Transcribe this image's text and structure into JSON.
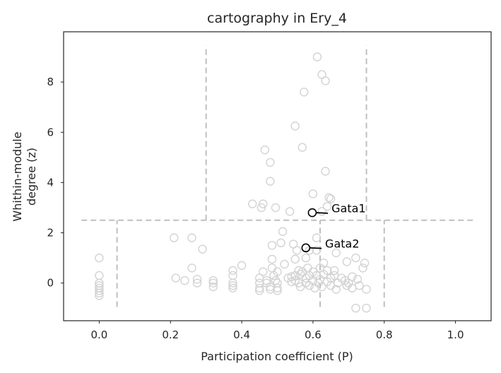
{
  "chart_data": {
    "type": "scatter",
    "title": "cartography in Ery_4",
    "xlabel": "Participation coefficient (P)",
    "ylabel_lines": [
      "Whithin-module",
      "degree (z)"
    ],
    "xlim": [
      -0.1,
      1.1
    ],
    "ylim": [
      -1.5,
      10.0
    ],
    "xticks": [
      0.0,
      0.2,
      0.4,
      0.6,
      0.8,
      1.0
    ],
    "xtick_labels": [
      "0.0",
      "0.2",
      "0.4",
      "0.6",
      "0.8",
      "1.0"
    ],
    "yticks": [
      0,
      2,
      4,
      6,
      8
    ],
    "ytick_labels": [
      "0",
      "2",
      "4",
      "6",
      "8"
    ],
    "grid": false,
    "colors": {
      "points": "#d3d3d3",
      "highlight": "#000000",
      "guides": "#bfbfbf",
      "axes": "#262626"
    },
    "guide_lines": {
      "horizontal": [
        {
          "y": 2.5,
          "x_from": -0.05,
          "x_to": 1.05
        }
      ],
      "vertical": [
        {
          "x": 0.3,
          "y_from": 2.5,
          "y_to": 9.45
        },
        {
          "x": 0.75,
          "y_from": 2.5,
          "y_to": 9.45
        },
        {
          "x": 0.05,
          "y_from": -0.95,
          "y_to": 2.5
        },
        {
          "x": 0.62,
          "y_from": -0.95,
          "y_to": 2.5
        },
        {
          "x": 0.8,
          "y_from": -0.95,
          "y_to": 2.5
        }
      ]
    },
    "points": [
      [
        0.0,
        1.0
      ],
      [
        0.0,
        0.3
      ],
      [
        0.0,
        0.0
      ],
      [
        0.0,
        -0.1
      ],
      [
        0.0,
        -0.2
      ],
      [
        0.0,
        -0.3
      ],
      [
        0.0,
        -0.4
      ],
      [
        0.0,
        -0.5
      ],
      [
        0.21,
        1.8
      ],
      [
        0.215,
        0.2
      ],
      [
        0.24,
        0.1
      ],
      [
        0.26,
        1.8
      ],
      [
        0.26,
        0.6
      ],
      [
        0.275,
        0.15
      ],
      [
        0.275,
        0.0
      ],
      [
        0.29,
        1.35
      ],
      [
        0.32,
        0.1
      ],
      [
        0.32,
        0.0
      ],
      [
        0.32,
        -0.15
      ],
      [
        0.375,
        0.5
      ],
      [
        0.375,
        0.3
      ],
      [
        0.375,
        0.0
      ],
      [
        0.375,
        -0.1
      ],
      [
        0.375,
        -0.2
      ],
      [
        0.4,
        0.7
      ],
      [
        0.43,
        3.15
      ],
      [
        0.45,
        0.2
      ],
      [
        0.45,
        0.0
      ],
      [
        0.45,
        -0.2
      ],
      [
        0.45,
        -0.3
      ],
      [
        0.455,
        3.0
      ],
      [
        0.46,
        3.15
      ],
      [
        0.46,
        0.45
      ],
      [
        0.465,
        5.3
      ],
      [
        0.47,
        0.1
      ],
      [
        0.47,
        0.0
      ],
      [
        0.48,
        4.8
      ],
      [
        0.48,
        4.05
      ],
      [
        0.48,
        -0.15
      ],
      [
        0.48,
        -0.25
      ],
      [
        0.485,
        1.5
      ],
      [
        0.485,
        0.95
      ],
      [
        0.485,
        0.6
      ],
      [
        0.49,
        0.3
      ],
      [
        0.495,
        3.0
      ],
      [
        0.495,
        0.1
      ],
      [
        0.5,
        0.45
      ],
      [
        0.5,
        0.0
      ],
      [
        0.5,
        -0.2
      ],
      [
        0.5,
        -0.3
      ],
      [
        0.51,
        1.6
      ],
      [
        0.515,
        2.05
      ],
      [
        0.52,
        0.75
      ],
      [
        0.53,
        0.2
      ],
      [
        0.535,
        2.85
      ],
      [
        0.54,
        0.25
      ],
      [
        0.54,
        0.05
      ],
      [
        0.545,
        1.55
      ],
      [
        0.55,
        6.25
      ],
      [
        0.55,
        0.95
      ],
      [
        0.55,
        0.3
      ],
      [
        0.55,
        0.1
      ],
      [
        0.555,
        1.3
      ],
      [
        0.56,
        0.5
      ],
      [
        0.56,
        0.0
      ],
      [
        0.565,
        0.35
      ],
      [
        0.565,
        -0.15
      ],
      [
        0.57,
        5.4
      ],
      [
        0.57,
        0.45
      ],
      [
        0.575,
        7.6
      ],
      [
        0.58,
        1.0
      ],
      [
        0.58,
        0.2
      ],
      [
        0.58,
        0.0
      ],
      [
        0.585,
        0.6
      ],
      [
        0.59,
        1.3
      ],
      [
        0.59,
        0.3
      ],
      [
        0.59,
        -0.1
      ],
      [
        0.6,
        3.55
      ],
      [
        0.6,
        0.45
      ],
      [
        0.6,
        0.1
      ],
      [
        0.605,
        -0.2
      ],
      [
        0.61,
        1.8
      ],
      [
        0.61,
        1.3
      ],
      [
        0.61,
        0.3
      ],
      [
        0.612,
        9.0
      ],
      [
        0.615,
        0.0
      ],
      [
        0.62,
        0.6
      ],
      [
        0.62,
        0.15
      ],
      [
        0.625,
        8.3
      ],
      [
        0.625,
        2.85
      ],
      [
        0.625,
        -0.15
      ],
      [
        0.63,
        0.8
      ],
      [
        0.63,
        0.35
      ],
      [
        0.635,
        8.05
      ],
      [
        0.635,
        4.45
      ],
      [
        0.64,
        3.05
      ],
      [
        0.64,
        0.5
      ],
      [
        0.64,
        0.05
      ],
      [
        0.645,
        3.4
      ],
      [
        0.65,
        3.35
      ],
      [
        0.65,
        0.2
      ],
      [
        0.65,
        -0.1
      ],
      [
        0.66,
        0.5
      ],
      [
        0.66,
        0.3
      ],
      [
        0.665,
        1.2
      ],
      [
        0.665,
        -0.25
      ],
      [
        0.67,
        0.0
      ],
      [
        0.68,
        0.2
      ],
      [
        0.69,
        0.1
      ],
      [
        0.695,
        0.85
      ],
      [
        0.695,
        -0.1
      ],
      [
        0.7,
        0.0
      ],
      [
        0.71,
        0.25
      ],
      [
        0.71,
        -0.2
      ],
      [
        0.72,
        1.0
      ],
      [
        0.72,
        -1.0
      ],
      [
        0.725,
        0.15
      ],
      [
        0.73,
        -0.1
      ],
      [
        0.74,
        0.6
      ],
      [
        0.745,
        0.8
      ],
      [
        0.75,
        -1.0
      ],
      [
        0.75,
        -0.25
      ]
    ],
    "highlight_points": [
      {
        "label": "Gata1",
        "x": 0.598,
        "y": 2.8,
        "text_x": 0.652,
        "text_y": 2.95
      },
      {
        "label": "Gata2",
        "x": 0.58,
        "y": 1.4,
        "text_x": 0.634,
        "text_y": 1.55
      }
    ]
  }
}
